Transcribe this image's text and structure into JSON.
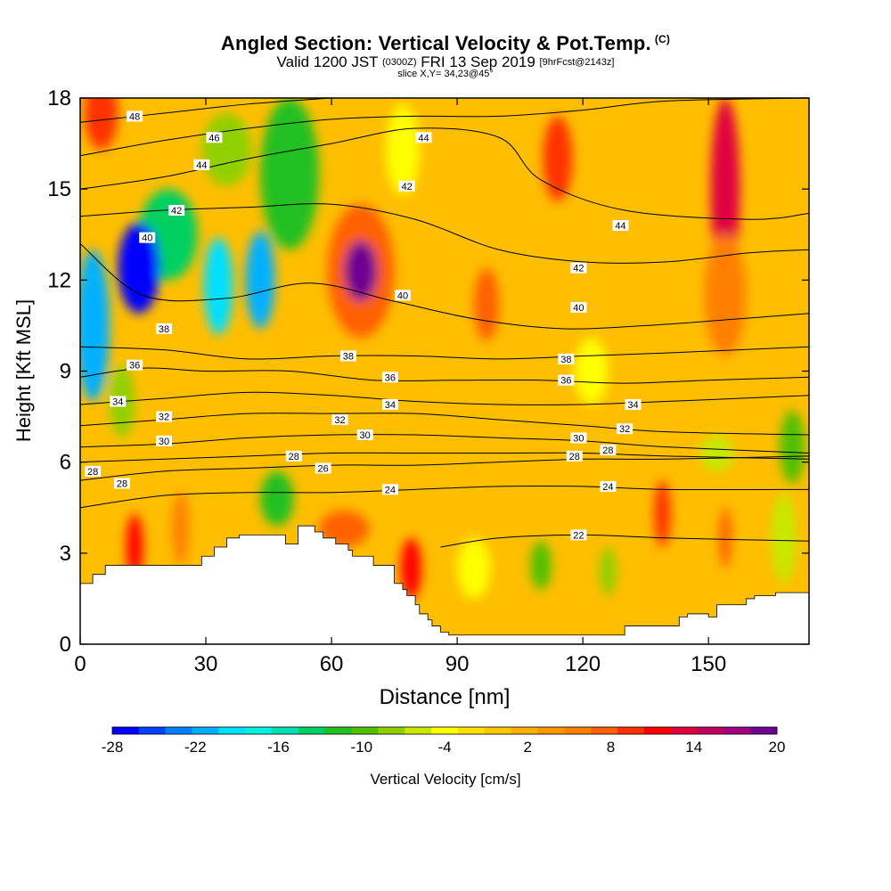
{
  "header": {
    "title_main": "Angled Section: Vertical Velocity & Pot.Temp.",
    "title_mark": "(C)",
    "valid_prefix": "Valid 1200 JST",
    "valid_zulu": "(0300Z)",
    "valid_date": "FRI 13 Sep 2019",
    "valid_fcst": "[9hrFcst@2143z]",
    "slice_text": "slice X,Y= 34,23@45°"
  },
  "colors": {
    "background_field": "#ffbe00",
    "terrain": "#ffffff",
    "contour_line": "#000000"
  },
  "chart_data": {
    "type": "heatmap",
    "title": "Angled Section: Vertical Velocity & Pot.Temp.",
    "xlabel": "Distance [nm]",
    "ylabel": "Height [Kft MSL]",
    "xlim": [
      0,
      174
    ],
    "ylim": [
      0,
      18
    ],
    "x_ticks": [
      0,
      30,
      60,
      90,
      120,
      150
    ],
    "y_ticks": [
      0,
      3,
      6,
      9,
      12,
      15,
      18
    ],
    "colorbar": {
      "label": "Vertical Velocity [cm/s]",
      "tick_labels": [
        "-28",
        "-22",
        "-16",
        "-10",
        "-4",
        "2",
        "8",
        "14",
        "20"
      ],
      "levels": [
        -28,
        -26,
        -24,
        -22,
        -20,
        -18,
        -16,
        -14,
        -12,
        -10,
        -8,
        -6,
        -4,
        -2,
        0,
        2,
        4,
        6,
        8,
        10,
        12,
        14,
        16,
        18,
        20
      ],
      "colors": [
        "#0000ff",
        "#0040ff",
        "#0080ff",
        "#00b0ff",
        "#00e0ff",
        "#00f0e0",
        "#00e0b0",
        "#00d060",
        "#20c020",
        "#50c000",
        "#90d000",
        "#c8e800",
        "#ffff00",
        "#ffe000",
        "#ffc800",
        "#ffb000",
        "#ff9800",
        "#ff8000",
        "#ff6000",
        "#ff3000",
        "#ff0000",
        "#e00040",
        "#c00060",
        "#a00080",
        "#700090"
      ]
    },
    "velocity_features": [
      {
        "x": 14,
        "y": 12.4,
        "sx": 5,
        "sy": 1.5,
        "value": -28
      },
      {
        "x": 3,
        "y": 10.5,
        "sx": 4,
        "sy": 2.5,
        "value": -22
      },
      {
        "x": 33,
        "y": 11.8,
        "sx": 3.5,
        "sy": 1.6,
        "value": -20
      },
      {
        "x": 43,
        "y": 12,
        "sx": 3.5,
        "sy": 1.6,
        "value": -22
      },
      {
        "x": 21,
        "y": 13.5,
        "sx": 7,
        "sy": 1.5,
        "value": -14
      },
      {
        "x": 50,
        "y": 15.5,
        "sx": 7,
        "sy": 2.5,
        "value": -12
      },
      {
        "x": 35,
        "y": 16.3,
        "sx": 6,
        "sy": 1.2,
        "value": -8
      },
      {
        "x": 10,
        "y": 8,
        "sx": 3,
        "sy": 1.2,
        "value": -8
      },
      {
        "x": 47,
        "y": 4.8,
        "sx": 4,
        "sy": 0.9,
        "value": -12
      },
      {
        "x": 67,
        "y": 12.3,
        "sx": 4,
        "sy": 1.0,
        "value": 20
      },
      {
        "x": 67,
        "y": 12.3,
        "sx": 8,
        "sy": 2.2,
        "value": 8
      },
      {
        "x": 5,
        "y": 17.5,
        "sx": 4,
        "sy": 1.2,
        "value": 10
      },
      {
        "x": 13,
        "y": 3.2,
        "sx": 2,
        "sy": 1.1,
        "value": 12
      },
      {
        "x": 24,
        "y": 3.8,
        "sx": 2,
        "sy": 1.2,
        "value": 6
      },
      {
        "x": 79,
        "y": 2.5,
        "sx": 2.5,
        "sy": 1.0,
        "value": 12
      },
      {
        "x": 63,
        "y": 3.8,
        "sx": 6,
        "sy": 0.6,
        "value": 8
      },
      {
        "x": 97,
        "y": 11.2,
        "sx": 3,
        "sy": 1.2,
        "value": 8
      },
      {
        "x": 114,
        "y": 16,
        "sx": 3.5,
        "sy": 1.4,
        "value": 10
      },
      {
        "x": 154,
        "y": 15,
        "sx": 3.5,
        "sy": 3,
        "value": 14
      },
      {
        "x": 154,
        "y": 11.5,
        "sx": 5,
        "sy": 2,
        "value": 6
      },
      {
        "x": 139,
        "y": 4.3,
        "sx": 2,
        "sy": 1.1,
        "value": 10
      },
      {
        "x": 154,
        "y": 3.5,
        "sx": 1.5,
        "sy": 1,
        "value": 8
      },
      {
        "x": 110,
        "y": 2.6,
        "sx": 2.5,
        "sy": 0.8,
        "value": -10
      },
      {
        "x": 126,
        "y": 2.4,
        "sx": 2,
        "sy": 0.8,
        "value": -8
      },
      {
        "x": 94,
        "y": 2.5,
        "sx": 4,
        "sy": 1.0,
        "value": -4
      },
      {
        "x": 77,
        "y": 16.3,
        "sx": 4,
        "sy": 1.5,
        "value": -4
      },
      {
        "x": 170,
        "y": 6.5,
        "sx": 3,
        "sy": 1.2,
        "value": -10
      },
      {
        "x": 152,
        "y": 6.3,
        "sx": 4,
        "sy": 0.6,
        "value": -6
      },
      {
        "x": 122,
        "y": 9,
        "sx": 4,
        "sy": 1.1,
        "value": -4
      },
      {
        "x": 168,
        "y": 3.5,
        "sx": 3,
        "sy": 1.5,
        "value": -5
      }
    ],
    "terrain": {
      "x": [
        0,
        3,
        3,
        6,
        6,
        8,
        8,
        29,
        29,
        32,
        32,
        35,
        35,
        38,
        38,
        49,
        49,
        52,
        52,
        56,
        56,
        58,
        58,
        61,
        61,
        64,
        64,
        65,
        65,
        70,
        70,
        75,
        75,
        77,
        77,
        78,
        78,
        80,
        80,
        81,
        81,
        83,
        83,
        84,
        84,
        86,
        86,
        88,
        88,
        130,
        130,
        143,
        143,
        145,
        145,
        150,
        150,
        152,
        152,
        159,
        159,
        161,
        161,
        166,
        166,
        174
      ],
      "h": [
        2.0,
        2.0,
        2.3,
        2.3,
        2.6,
        2.6,
        2.6,
        2.6,
        2.9,
        2.9,
        3.2,
        3.2,
        3.5,
        3.5,
        3.6,
        3.6,
        3.3,
        3.3,
        3.9,
        3.9,
        3.7,
        3.7,
        3.5,
        3.5,
        3.3,
        3.3,
        3.1,
        3.1,
        2.9,
        2.9,
        2.6,
        2.6,
        2.0,
        2.0,
        1.8,
        1.8,
        1.6,
        1.6,
        1.3,
        1.3,
        1.0,
        1.0,
        0.8,
        0.8,
        0.6,
        0.6,
        0.4,
        0.4,
        0.3,
        0.3,
        0.6,
        0.6,
        0.9,
        0.9,
        1.0,
        1.0,
        0.9,
        0.9,
        1.3,
        1.3,
        1.5,
        1.5,
        1.6,
        1.6,
        1.7,
        1.7
      ]
    },
    "isentropes": {
      "label_color": "#000000",
      "lines": [
        {
          "label": "22",
          "x": [
            86,
            100,
            120,
            140,
            174
          ],
          "y": [
            3.2,
            3.5,
            3.6,
            3.5,
            3.4
          ]
        },
        {
          "label": "24",
          "x": [
            0,
            20,
            40,
            60,
            80,
            100,
            120,
            140,
            174
          ],
          "y": [
            4.5,
            4.9,
            5.0,
            5.0,
            5.1,
            5.2,
            5.2,
            5.1,
            5.1
          ]
        },
        {
          "label": "26",
          "x": [
            0,
            20,
            40,
            60,
            80,
            100,
            120,
            140,
            174
          ],
          "y": [
            5.4,
            5.7,
            5.8,
            5.9,
            5.9,
            6.0,
            6.1,
            6.1,
            6.2
          ]
        },
        {
          "label": "28",
          "x": [
            0,
            20,
            40,
            60,
            80,
            100,
            120,
            140,
            174
          ],
          "y": [
            6.0,
            6.1,
            6.2,
            6.3,
            6.3,
            6.3,
            6.3,
            6.2,
            6.1
          ]
        },
        {
          "label": "30",
          "x": [
            0,
            20,
            40,
            60,
            80,
            100,
            120,
            140,
            174
          ],
          "y": [
            6.5,
            6.6,
            6.8,
            6.9,
            6.9,
            6.8,
            6.7,
            6.5,
            6.3
          ]
        },
        {
          "label": "32",
          "x": [
            0,
            20,
            40,
            60,
            80,
            100,
            120,
            140,
            174
          ],
          "y": [
            7.2,
            7.4,
            7.6,
            7.6,
            7.6,
            7.4,
            7.2,
            7.0,
            6.9
          ]
        },
        {
          "label": "34",
          "x": [
            0,
            20,
            40,
            60,
            80,
            100,
            120,
            140,
            174
          ],
          "y": [
            7.9,
            8.1,
            8.3,
            8.2,
            8.0,
            7.9,
            7.9,
            8.0,
            8.2
          ]
        },
        {
          "label": "36",
          "x": [
            0,
            15,
            30,
            50,
            70,
            90,
            110,
            130,
            150,
            174
          ],
          "y": [
            8.8,
            9.1,
            9.0,
            9.0,
            8.7,
            8.7,
            8.7,
            8.6,
            8.7,
            8.8
          ]
        },
        {
          "label": "38",
          "x": [
            0,
            20,
            40,
            60,
            80,
            100,
            120,
            140,
            174
          ],
          "y": [
            9.8,
            9.7,
            9.4,
            9.5,
            9.5,
            9.4,
            9.5,
            9.6,
            9.8
          ]
        },
        {
          "label": "40",
          "x": [
            0,
            15,
            35,
            55,
            75,
            95,
            115,
            135,
            155,
            174
          ],
          "y": [
            13.2,
            11.5,
            11.4,
            11.9,
            11.3,
            10.7,
            10.4,
            10.5,
            10.7,
            10.9
          ]
        },
        {
          "label": "42",
          "x": [
            0,
            20,
            40,
            60,
            80,
            100,
            120,
            140,
            160,
            174
          ],
          "y": [
            14.1,
            14.3,
            14.4,
            14.5,
            14.0,
            13.0,
            12.6,
            12.6,
            12.9,
            13.0
          ]
        },
        {
          "label": "44",
          "x": [
            0,
            20,
            40,
            60,
            80,
            100,
            110,
            130,
            160,
            174
          ],
          "y": [
            15.0,
            15.4,
            16.0,
            16.5,
            17.0,
            16.7,
            15.3,
            14.3,
            14.0,
            14.2
          ]
        },
        {
          "label": "46",
          "x": [
            0,
            20,
            40,
            60,
            80,
            100,
            120,
            140,
            174
          ],
          "y": [
            16.1,
            16.6,
            17.0,
            17.3,
            17.4,
            17.4,
            17.6,
            17.9,
            18.0
          ]
        },
        {
          "label": "48",
          "x": [
            0,
            20,
            40,
            60
          ],
          "y": [
            17.2,
            17.5,
            17.8,
            18.0
          ]
        }
      ]
    },
    "isentrope_labels": [
      {
        "text": "48",
        "x": 13,
        "y": 17.4
      },
      {
        "text": "46",
        "x": 32,
        "y": 16.7
      },
      {
        "text": "44",
        "x": 29,
        "y": 15.8
      },
      {
        "text": "44",
        "x": 82,
        "y": 16.7
      },
      {
        "text": "44",
        "x": 129,
        "y": 13.8
      },
      {
        "text": "42",
        "x": 23,
        "y": 14.3
      },
      {
        "text": "42",
        "x": 78,
        "y": 15.1
      },
      {
        "text": "42",
        "x": 119,
        "y": 12.4
      },
      {
        "text": "40",
        "x": 16,
        "y": 13.4
      },
      {
        "text": "40",
        "x": 77,
        "y": 11.5
      },
      {
        "text": "40",
        "x": 119,
        "y": 11.1
      },
      {
        "text": "38",
        "x": 20,
        "y": 10.4
      },
      {
        "text": "38",
        "x": 64,
        "y": 9.5
      },
      {
        "text": "38",
        "x": 116,
        "y": 9.4
      },
      {
        "text": "36",
        "x": 13,
        "y": 9.2
      },
      {
        "text": "36",
        "x": 74,
        "y": 8.8
      },
      {
        "text": "36",
        "x": 116,
        "y": 8.7
      },
      {
        "text": "34",
        "x": 9,
        "y": 8.0
      },
      {
        "text": "34",
        "x": 74,
        "y": 7.9
      },
      {
        "text": "34",
        "x": 132,
        "y": 7.9
      },
      {
        "text": "32",
        "x": 20,
        "y": 7.5
      },
      {
        "text": "32",
        "x": 62,
        "y": 7.4
      },
      {
        "text": "32",
        "x": 130,
        "y": 7.1
      },
      {
        "text": "30",
        "x": 20,
        "y": 6.7
      },
      {
        "text": "30",
        "x": 68,
        "y": 6.9
      },
      {
        "text": "30",
        "x": 119,
        "y": 6.8
      },
      {
        "text": "28",
        "x": 3,
        "y": 5.7
      },
      {
        "text": "28",
        "x": 10,
        "y": 5.3
      },
      {
        "text": "28",
        "x": 51,
        "y": 6.2
      },
      {
        "text": "28",
        "x": 118,
        "y": 6.2
      },
      {
        "text": "28",
        "x": 126,
        "y": 6.4
      },
      {
        "text": "26",
        "x": 58,
        "y": 5.8
      },
      {
        "text": "24",
        "x": 74,
        "y": 5.1
      },
      {
        "text": "24",
        "x": 126,
        "y": 5.2
      },
      {
        "text": "22",
        "x": 119,
        "y": 3.6
      }
    ]
  }
}
